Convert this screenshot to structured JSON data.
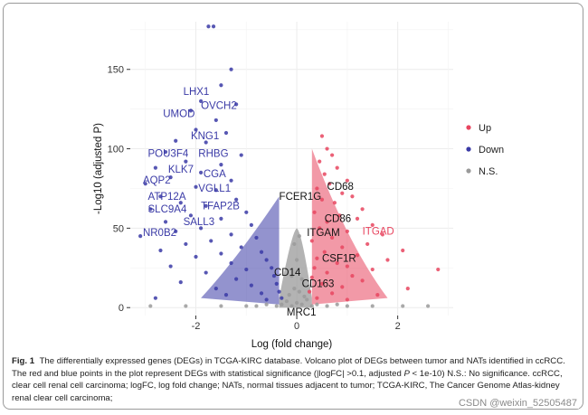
{
  "caption": {
    "fig_label": "Fig. 1",
    "text_part1": "The differentially expressed genes (DEGs) in TCGA-KIRC database. Volcano plot of DEGs between tumor and NATs identified in ccRCC. The red and blue points in the plot represent DEGs with statistical significance (|logFC| >0.1, adjusted ",
    "text_italic_p": "P",
    "text_part2": " < 1e-10) N.S.: No significance. ccRCC, clear cell renal cell carcinoma; logFC, log fold change; NATs, normal tissues adjacent to tumor; TCGA-KIRC, The Cancer Genome Atlas-kidney renal clear cell carcinoma;"
  },
  "watermark": "CSDN @weixin_52505487",
  "colors": {
    "up": "#e8455f",
    "down": "#3a3aa6",
    "ns": "#9a9a9a",
    "grid": "#ececec",
    "text_black": "#111111"
  },
  "chart_data": {
    "type": "scatter",
    "xlabel": "Log (fold change)",
    "ylabel": "-Log10 (adjusted P)",
    "xlim": [
      -3.3,
      3.1
    ],
    "ylim": [
      -5,
      180
    ],
    "x_ticks": [
      -2,
      0,
      2
    ],
    "y_ticks": [
      0,
      50,
      100,
      150
    ],
    "grid": true,
    "legend": {
      "placement": "right",
      "entries": [
        {
          "name": "Up",
          "color": "#e8455f"
        },
        {
          "name": "Down",
          "color": "#3a3aa6"
        },
        {
          "name": "N.S.",
          "color": "#9a9a9a"
        }
      ]
    },
    "series": [
      {
        "name": "Down",
        "points": [
          [
            -1.75,
            177
          ],
          [
            -1.65,
            177
          ],
          [
            -1.3,
            150
          ],
          [
            -1.5,
            140
          ],
          [
            -1.9,
            130
          ],
          [
            -1.2,
            128
          ],
          [
            -2.1,
            124
          ],
          [
            -1.6,
            118
          ],
          [
            -2.0,
            112
          ],
          [
            -1.4,
            110
          ],
          [
            -2.4,
            105
          ],
          [
            -1.8,
            104
          ],
          [
            -2.6,
            98
          ],
          [
            -1.1,
            96
          ],
          [
            -2.2,
            92
          ],
          [
            -1.5,
            90
          ],
          [
            -2.8,
            88
          ],
          [
            -1.9,
            85
          ],
          [
            -2.5,
            82
          ],
          [
            -1.3,
            80
          ],
          [
            -3.0,
            78
          ],
          [
            -2.0,
            76
          ],
          [
            -1.6,
            74
          ],
          [
            -2.7,
            70
          ],
          [
            -1.2,
            68
          ],
          [
            -2.3,
            66
          ],
          [
            -1.8,
            64
          ],
          [
            -2.9,
            62
          ],
          [
            -1.0,
            60
          ],
          [
            -2.1,
            58
          ],
          [
            -1.5,
            56
          ],
          [
            -2.6,
            54
          ],
          [
            -0.9,
            52
          ],
          [
            -1.9,
            50
          ],
          [
            -2.4,
            48
          ],
          [
            -1.3,
            46
          ],
          [
            -3.1,
            45
          ],
          [
            -0.8,
            44
          ],
          [
            -1.7,
            42
          ],
          [
            -2.2,
            40
          ],
          [
            -1.1,
            38
          ],
          [
            -2.7,
            36
          ],
          [
            -0.7,
            35
          ],
          [
            -1.5,
            34
          ],
          [
            -2.0,
            32
          ],
          [
            -0.6,
            30
          ],
          [
            -1.3,
            28
          ],
          [
            -2.5,
            26
          ],
          [
            -0.5,
            25
          ],
          [
            -1.0,
            24
          ],
          [
            -1.8,
            22
          ],
          [
            -0.45,
            20
          ],
          [
            -1.2,
            18
          ],
          [
            -2.3,
            16
          ],
          [
            -0.4,
            15
          ],
          [
            -0.9,
            14
          ],
          [
            -1.6,
            12
          ],
          [
            -0.35,
            10
          ],
          [
            -0.7,
            9
          ],
          [
            -1.4,
            8
          ],
          [
            -2.8,
            6
          ],
          [
            -0.3,
            6
          ],
          [
            -0.6,
            5
          ]
        ]
      },
      {
        "name": "Up",
        "points": [
          [
            0.5,
            108
          ],
          [
            0.6,
            100
          ],
          [
            0.7,
            96
          ],
          [
            0.45,
            92
          ],
          [
            0.8,
            88
          ],
          [
            0.55,
            84
          ],
          [
            1.0,
            80
          ],
          [
            0.65,
            78
          ],
          [
            0.4,
            75
          ],
          [
            0.9,
            72
          ],
          [
            1.1,
            70
          ],
          [
            0.5,
            68
          ],
          [
            0.75,
            66
          ],
          [
            1.3,
            62
          ],
          [
            0.35,
            60
          ],
          [
            0.85,
            58
          ],
          [
            1.2,
            56
          ],
          [
            0.6,
            54
          ],
          [
            1.5,
            52
          ],
          [
            0.45,
            50
          ],
          [
            1.0,
            48
          ],
          [
            1.7,
            46
          ],
          [
            0.7,
            44
          ],
          [
            0.3,
            42
          ],
          [
            1.4,
            40
          ],
          [
            0.9,
            38
          ],
          [
            2.1,
            36
          ],
          [
            0.55,
            35
          ],
          [
            1.2,
            33
          ],
          [
            0.4,
            31
          ],
          [
            1.8,
            30
          ],
          [
            0.8,
            28
          ],
          [
            1.0,
            26
          ],
          [
            0.35,
            25
          ],
          [
            1.5,
            24
          ],
          [
            2.8,
            24
          ],
          [
            0.6,
            22
          ],
          [
            1.1,
            20
          ],
          [
            0.3,
            19
          ],
          [
            1.3,
            17
          ],
          [
            0.5,
            15
          ],
          [
            0.9,
            13
          ],
          [
            2.2,
            12
          ],
          [
            0.25,
            10
          ],
          [
            0.7,
            9
          ],
          [
            1.6,
            8
          ],
          [
            0.4,
            6
          ],
          [
            1.0,
            5
          ]
        ]
      },
      {
        "name": "N.S.",
        "points": [
          [
            -0.3,
            2
          ],
          [
            -0.2,
            4
          ],
          [
            -0.1,
            1
          ],
          [
            0.0,
            3
          ],
          [
            0.1,
            2
          ],
          [
            0.2,
            5
          ],
          [
            0.3,
            1
          ],
          [
            -0.4,
            1
          ],
          [
            0.4,
            2
          ],
          [
            -0.6,
            2
          ],
          [
            0.6,
            1
          ],
          [
            -0.8,
            1
          ],
          [
            0.8,
            2
          ],
          [
            -1.0,
            1
          ],
          [
            1.0,
            1
          ],
          [
            -1.5,
            1
          ],
          [
            1.5,
            1
          ],
          [
            -2.2,
            1
          ],
          [
            2.1,
            1
          ],
          [
            -2.9,
            1
          ],
          [
            2.6,
            1
          ],
          [
            -0.15,
            8
          ],
          [
            0.15,
            7
          ],
          [
            -0.05,
            12
          ],
          [
            0.05,
            10
          ],
          [
            -0.1,
            20
          ],
          [
            0.1,
            18
          ],
          [
            0.0,
            30
          ],
          [
            -0.05,
            40
          ],
          [
            0.05,
            45
          ]
        ]
      }
    ],
    "gene_labels": [
      {
        "gene": "LHX1",
        "x": -2.25,
        "y": 134,
        "group": "Down"
      },
      {
        "gene": "OVCH2",
        "x": -1.9,
        "y": 125,
        "group": "Down"
      },
      {
        "gene": "UMOD",
        "x": -2.65,
        "y": 120,
        "group": "Down"
      },
      {
        "gene": "KNG1",
        "x": -2.1,
        "y": 106,
        "group": "Down"
      },
      {
        "gene": "POU3F4",
        "x": -2.95,
        "y": 95,
        "group": "Down"
      },
      {
        "gene": "RHBG",
        "x": -1.95,
        "y": 95,
        "group": "Down"
      },
      {
        "gene": "KLK7",
        "x": -2.55,
        "y": 85,
        "group": "Down"
      },
      {
        "gene": "CGA",
        "x": -1.85,
        "y": 82,
        "group": "Down"
      },
      {
        "gene": "AQP2",
        "x": -3.05,
        "y": 78,
        "group": "Down"
      },
      {
        "gene": "VGLL1",
        "x": -1.95,
        "y": 73,
        "group": "Down"
      },
      {
        "gene": "ATP12A",
        "x": -2.95,
        "y": 68,
        "group": "Down"
      },
      {
        "gene": "SLC9A4",
        "x": -2.95,
        "y": 60,
        "group": "Down"
      },
      {
        "gene": "TFAP2B",
        "x": -1.9,
        "y": 62,
        "group": "Down"
      },
      {
        "gene": "SALL3",
        "x": -2.25,
        "y": 52,
        "group": "Down"
      },
      {
        "gene": "NR0B2",
        "x": -3.05,
        "y": 45,
        "group": "Down"
      },
      {
        "gene": "FCER1G",
        "x": -0.35,
        "y": 68,
        "group": "NS"
      },
      {
        "gene": "CD68",
        "x": 0.6,
        "y": 74,
        "group": "NS"
      },
      {
        "gene": "CD86",
        "x": 0.55,
        "y": 54,
        "group": "NS"
      },
      {
        "gene": "ITGAD",
        "x": 1.3,
        "y": 46,
        "group": "Up"
      },
      {
        "gene": "ITGAM",
        "x": 0.2,
        "y": 45,
        "group": "NS"
      },
      {
        "gene": "CSF1R",
        "x": 0.5,
        "y": 29,
        "group": "NS"
      },
      {
        "gene": "CD14",
        "x": -0.45,
        "y": 20,
        "group": "NS"
      },
      {
        "gene": "CD163",
        "x": 0.1,
        "y": 13,
        "group": "NS"
      },
      {
        "gene": "MRC1",
        "x": -0.2,
        "y": -5,
        "group": "NS"
      }
    ]
  }
}
